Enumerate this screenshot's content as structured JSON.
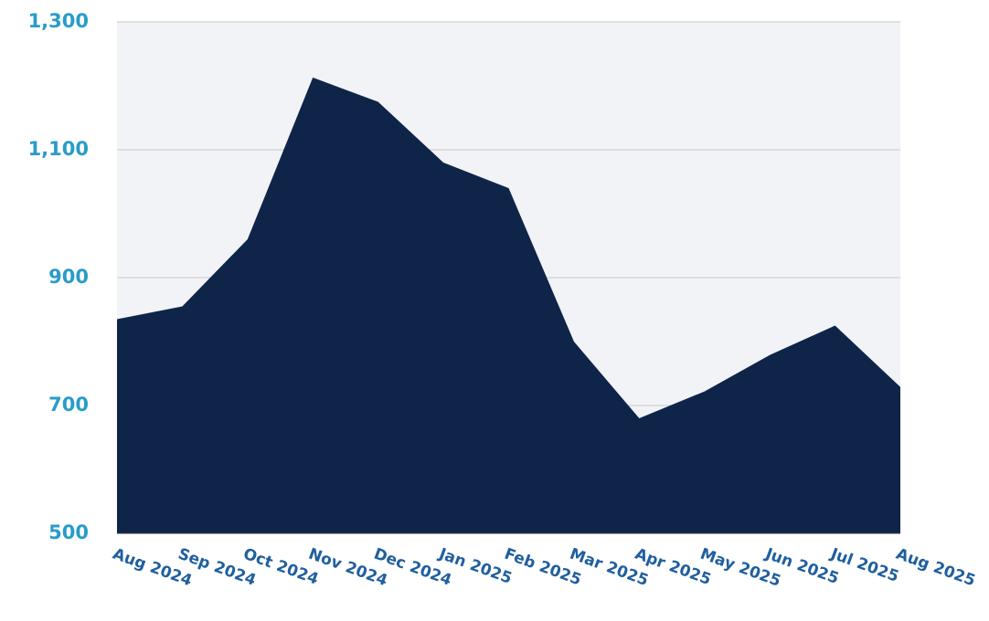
{
  "chart_data": {
    "type": "area",
    "categories": [
      "Aug 2024",
      "Sep 2024",
      "Oct 2024",
      "Nov 2024",
      "Dec 2024",
      "Jan 2025",
      "Feb 2025",
      "Mar 2025",
      "Apr 2025",
      "May 2025",
      "Jun 2025",
      "Jul 2025",
      "Aug 2025"
    ],
    "values": [
      835,
      855,
      960,
      1213,
      1175,
      1080,
      1040,
      800,
      680,
      722,
      779,
      825,
      729
    ],
    "color": "#0f2449",
    "ylim": [
      500,
      1300
    ],
    "yticks": [
      500,
      700,
      900,
      {
        "value": 1100,
        "label": "1,100"
      },
      {
        "value": 1300,
        "label": "1,300"
      }
    ],
    "grid": true
  }
}
